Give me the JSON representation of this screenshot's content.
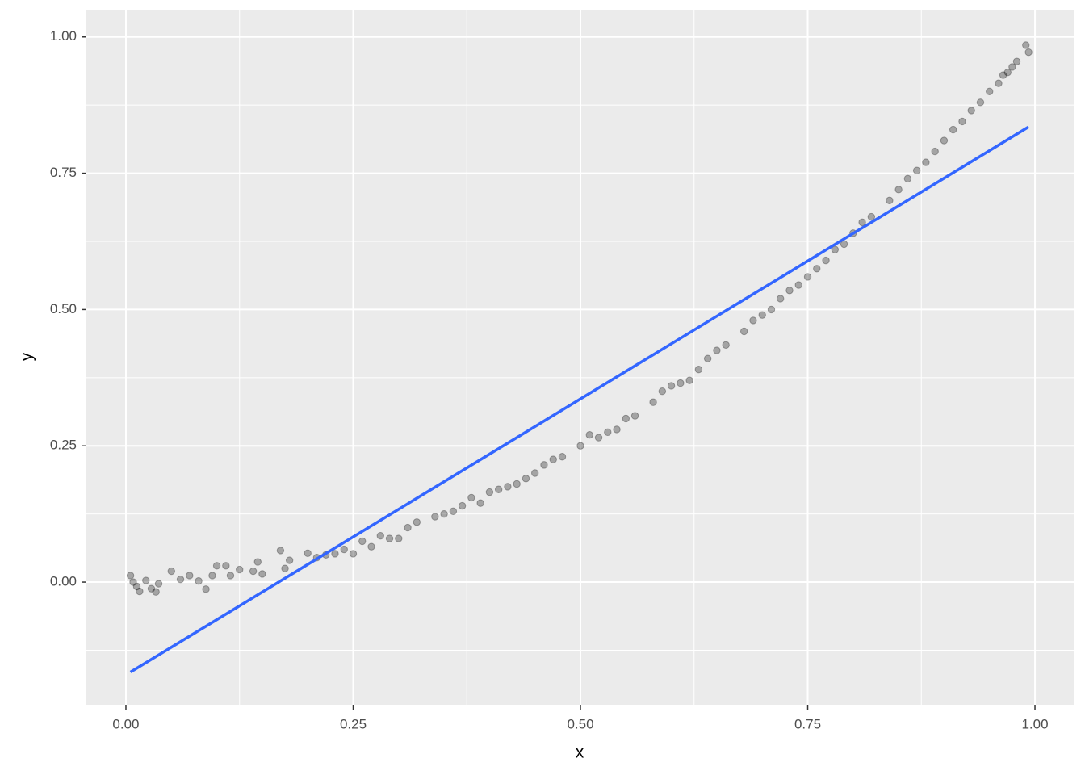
{
  "chart_data": {
    "type": "scatter",
    "x_label": "x",
    "y_label": "y",
    "xlim": [
      -0.0435,
      1.0426
    ],
    "ylim": [
      -0.225,
      1.05
    ],
    "xticks": [
      {
        "value": 0,
        "label": "0.00"
      },
      {
        "value": 0.25,
        "label": "0.25"
      },
      {
        "value": 0.5,
        "label": "0.50"
      },
      {
        "value": 0.75,
        "label": "0.75"
      },
      {
        "value": 1,
        "label": "1.00"
      }
    ],
    "yticks": [
      {
        "value": 0,
        "label": "0.00"
      },
      {
        "value": 0.25,
        "label": "0.25"
      },
      {
        "value": 0.5,
        "label": "0.50"
      },
      {
        "value": 0.75,
        "label": "0.75"
      },
      {
        "value": 1,
        "label": "1.00"
      }
    ],
    "minor_xticks": [
      0.125,
      0.375,
      0.625,
      0.875
    ],
    "minor_yticks": [
      -0.125,
      0.125,
      0.375,
      0.625,
      0.875
    ],
    "grid": true,
    "point_color": "#000000",
    "x": [
      0.005,
      0.008,
      0.012,
      0.015,
      0.022,
      0.028,
      0.033,
      0.036,
      0.05,
      0.06,
      0.07,
      0.08,
      0.088,
      0.095,
      0.1,
      0.11,
      0.115,
      0.125,
      0.14,
      0.145,
      0.15,
      0.17,
      0.175,
      0.18,
      0.2,
      0.21,
      0.22,
      0.23,
      0.24,
      0.25,
      0.26,
      0.27,
      0.28,
      0.29,
      0.3,
      0.31,
      0.32,
      0.34,
      0.35,
      0.36,
      0.37,
      0.38,
      0.39,
      0.4,
      0.41,
      0.42,
      0.43,
      0.44,
      0.45,
      0.46,
      0.47,
      0.48,
      0.5,
      0.51,
      0.52,
      0.53,
      0.54,
      0.55,
      0.56,
      0.58,
      0.59,
      0.6,
      0.61,
      0.62,
      0.63,
      0.64,
      0.65,
      0.66,
      0.68,
      0.69,
      0.7,
      0.71,
      0.72,
      0.73,
      0.74,
      0.75,
      0.76,
      0.77,
      0.78,
      0.79,
      0.8,
      0.81,
      0.82,
      0.84,
      0.85,
      0.86,
      0.87,
      0.88,
      0.89,
      0.9,
      0.91,
      0.92,
      0.93,
      0.94,
      0.95,
      0.96,
      0.965,
      0.97,
      0.975,
      0.98,
      0.99,
      0.993
    ],
    "y": [
      0.012,
      0.0,
      -0.008,
      -0.017,
      0.003,
      -0.012,
      -0.018,
      -0.003,
      0.02,
      0.005,
      0.012,
      0.002,
      -0.013,
      0.012,
      0.03,
      0.03,
      0.012,
      0.023,
      0.02,
      0.037,
      0.015,
      0.058,
      0.025,
      0.04,
      0.053,
      0.045,
      0.05,
      0.052,
      0.06,
      0.052,
      0.075,
      0.065,
      0.085,
      0.08,
      0.08,
      0.1,
      0.11,
      0.12,
      0.125,
      0.13,
      0.14,
      0.155,
      0.145,
      0.165,
      0.17,
      0.175,
      0.18,
      0.19,
      0.2,
      0.215,
      0.225,
      0.23,
      0.25,
      0.27,
      0.265,
      0.275,
      0.28,
      0.3,
      0.305,
      0.33,
      0.35,
      0.36,
      0.365,
      0.37,
      0.39,
      0.41,
      0.425,
      0.435,
      0.46,
      0.48,
      0.49,
      0.5,
      0.52,
      0.535,
      0.545,
      0.56,
      0.575,
      0.59,
      0.61,
      0.62,
      0.64,
      0.66,
      0.67,
      0.7,
      0.72,
      0.74,
      0.755,
      0.77,
      0.79,
      0.81,
      0.83,
      0.845,
      0.865,
      0.88,
      0.9,
      0.915,
      0.93,
      0.935,
      0.945,
      0.955,
      0.985,
      0.972
    ],
    "fit_line": {
      "x": [
        0.005,
        0.993
      ],
      "y": [
        -0.165,
        0.835
      ],
      "color": "#3366FF"
    }
  }
}
